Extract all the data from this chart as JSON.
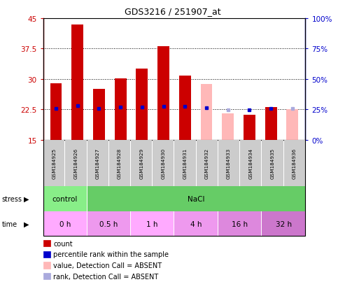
{
  "title": "GDS3216 / 251907_at",
  "samples": [
    "GSM184925",
    "GSM184926",
    "GSM184927",
    "GSM184928",
    "GSM184929",
    "GSM184930",
    "GSM184931",
    "GSM184932",
    "GSM184933",
    "GSM184934",
    "GSM184935",
    "GSM184936"
  ],
  "bar_values": [
    29.0,
    43.5,
    27.5,
    30.2,
    32.5,
    38.0,
    30.8,
    28.8,
    21.5,
    21.2,
    23.0,
    22.5
  ],
  "bar_absent": [
    false,
    false,
    false,
    false,
    false,
    false,
    false,
    true,
    true,
    false,
    false,
    true
  ],
  "percentile_rank": [
    26.0,
    28.0,
    26.0,
    27.0,
    27.0,
    27.5,
    27.2,
    26.5,
    24.5,
    24.5,
    26.0,
    25.5
  ],
  "rank_absent": [
    false,
    false,
    false,
    false,
    false,
    false,
    false,
    false,
    true,
    false,
    false,
    true
  ],
  "ylim_left": [
    15,
    45
  ],
  "ylim_right": [
    0,
    100
  ],
  "yticks_left": [
    15,
    22.5,
    30,
    37.5,
    45
  ],
  "yticks_right": [
    0,
    25,
    50,
    75,
    100
  ],
  "bar_color_present": "#cc0000",
  "bar_color_absent": "#ffb8b8",
  "rank_color_present": "#0000cc",
  "rank_color_absent": "#aaaadd",
  "stress_groups": [
    {
      "label": "control",
      "start": 0,
      "end": 2,
      "color": "#88ee88"
    },
    {
      "label": "NaCl",
      "start": 2,
      "end": 12,
      "color": "#66cc66"
    }
  ],
  "time_groups": [
    {
      "label": "0 h",
      "start": 0,
      "end": 2,
      "color": "#ffaaff"
    },
    {
      "label": "0.5 h",
      "start": 2,
      "end": 4,
      "color": "#ee99ee"
    },
    {
      "label": "1 h",
      "start": 4,
      "end": 6,
      "color": "#ffaaff"
    },
    {
      "label": "4 h",
      "start": 6,
      "end": 8,
      "color": "#ee99ee"
    },
    {
      "label": "16 h",
      "start": 8,
      "end": 10,
      "color": "#dd88dd"
    },
    {
      "label": "32 h",
      "start": 10,
      "end": 12,
      "color": "#cc77cc"
    }
  ],
  "legend_items": [
    {
      "label": "count",
      "color": "#cc0000"
    },
    {
      "label": "percentile rank within the sample",
      "color": "#0000cc"
    },
    {
      "label": "value, Detection Call = ABSENT",
      "color": "#ffb8b8"
    },
    {
      "label": "rank, Detection Call = ABSENT",
      "color": "#aaaadd"
    }
  ],
  "stress_label": "stress",
  "time_label": "time",
  "ytick_labels_left": [
    "15",
    "22.5",
    "30",
    "37.5",
    "45"
  ],
  "ytick_labels_right": [
    "0%",
    "25%",
    "50%",
    "75%",
    "100%"
  ]
}
